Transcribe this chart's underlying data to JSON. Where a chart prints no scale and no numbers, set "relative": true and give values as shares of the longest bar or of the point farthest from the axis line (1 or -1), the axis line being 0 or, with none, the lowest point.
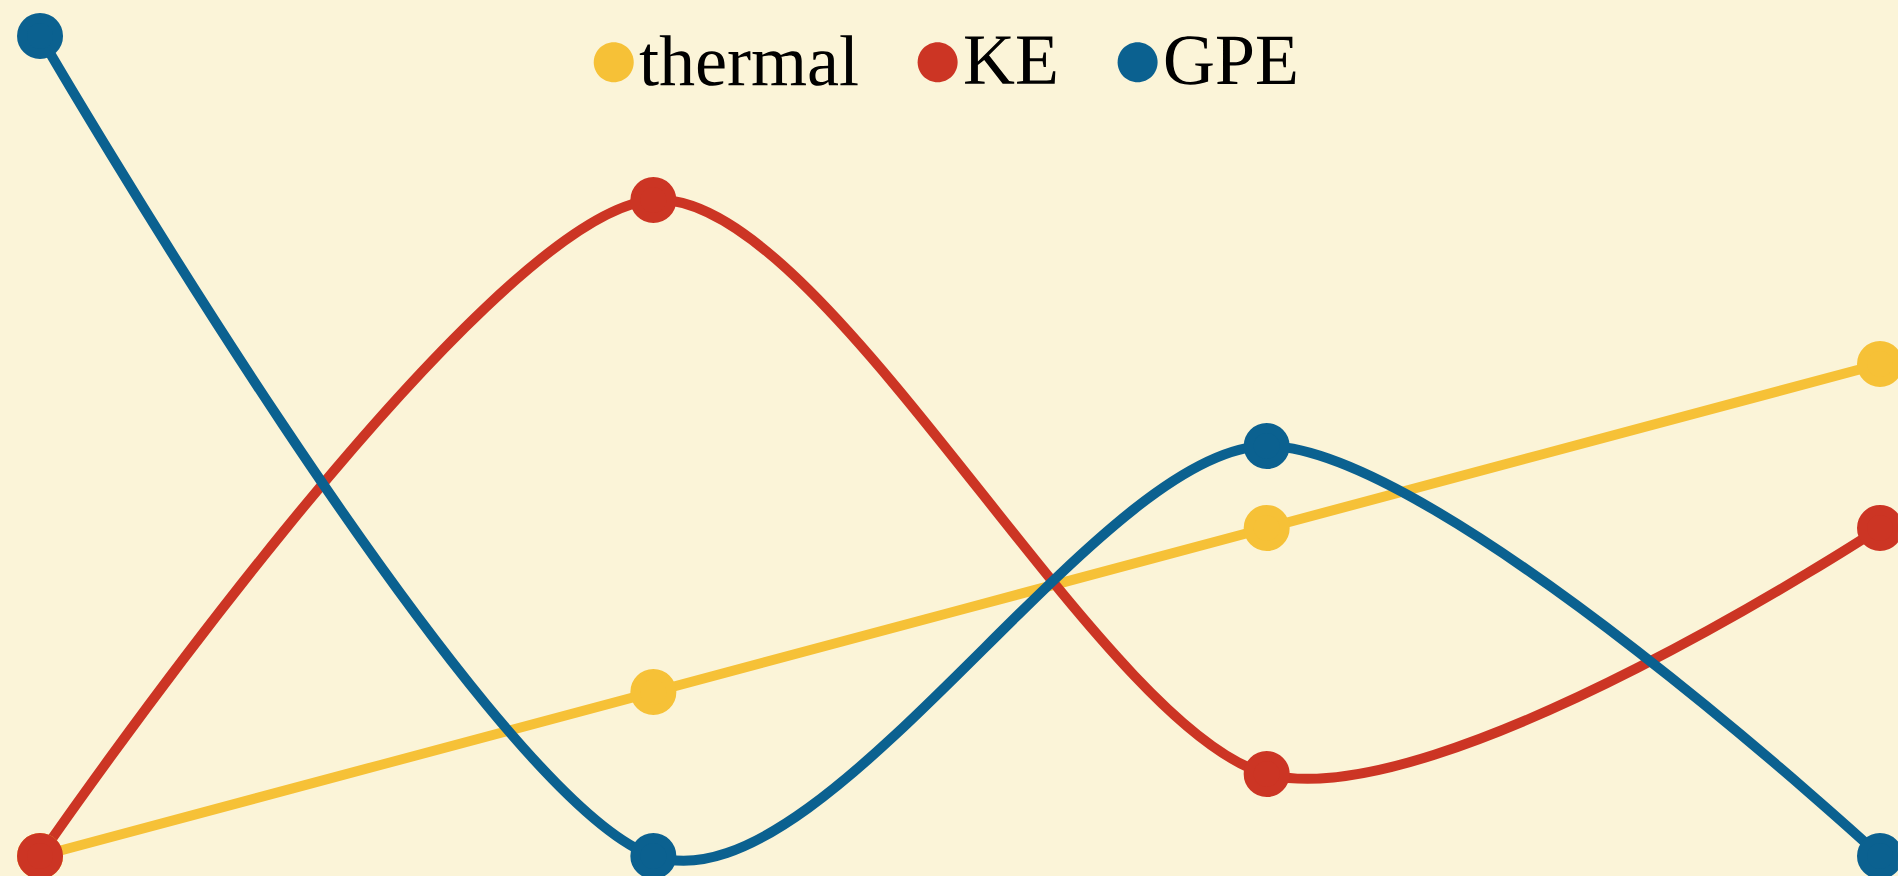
{
  "chart_data": {
    "type": "line",
    "relative": true,
    "categories": [
      null,
      null,
      null,
      null
    ],
    "series": [
      {
        "name": "thermal",
        "color": "#f6c137",
        "values": [
          0,
          0.2,
          0.4,
          0.6
        ]
      },
      {
        "name": "KE",
        "color": "#cc3524",
        "values": [
          0,
          0.8,
          0.1,
          0.4
        ]
      },
      {
        "name": "GPE",
        "color": "#0b6190",
        "values": [
          1,
          0,
          0.5,
          0
        ]
      }
    ],
    "legend": "top",
    "marker": "circle",
    "line_style": "solid"
  }
}
